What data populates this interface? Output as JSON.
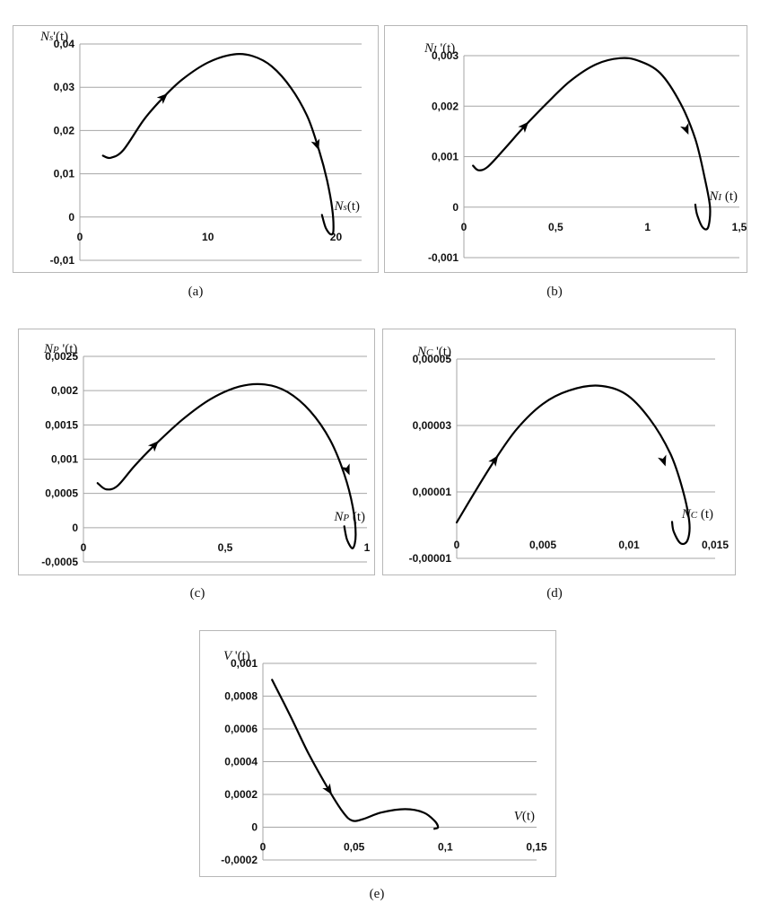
{
  "chart_data": [
    {
      "type": "line",
      "caption": "(a)",
      "xlabel": "Ns(t)",
      "ylabel": "Ns'(t)",
      "xlim": [
        0,
        22
      ],
      "ylim": [
        -0.01,
        0.04
      ],
      "xticks": [
        "0",
        "10",
        "20"
      ],
      "xtick_values": [
        0,
        10,
        20
      ],
      "yticks": [
        "0,04",
        "0,03",
        "0,02",
        "0,01",
        "0",
        "-0,01"
      ],
      "ytick_values": [
        0.04,
        0.03,
        0.02,
        0.01,
        0,
        -0.01
      ],
      "grid": true,
      "x": [
        1.8,
        2.4,
        3.4,
        5.0,
        6.5,
        8.0,
        10.0,
        12.0,
        13.5,
        15.0,
        16.5,
        17.8,
        18.7,
        19.3,
        19.7,
        19.8,
        19.6,
        19.2,
        18.9
      ],
      "y": [
        0.0142,
        0.0137,
        0.0155,
        0.0225,
        0.0276,
        0.0318,
        0.0357,
        0.0376,
        0.0372,
        0.0348,
        0.0298,
        0.023,
        0.0152,
        0.0085,
        0.002,
        -0.003,
        -0.004,
        -0.0025,
        0.0005
      ],
      "arrows": [
        {
          "x": 6.5,
          "y": 0.0276
        },
        {
          "x": 18.5,
          "y": 0.0168
        }
      ]
    },
    {
      "type": "line",
      "caption": "(b)",
      "xlabel": "NI (t)",
      "ylabel": "NI '(t)",
      "xlim": [
        0,
        1.5
      ],
      "ylim": [
        -0.001,
        0.003
      ],
      "xticks": [
        "0",
        "0,5",
        "1",
        "1,5"
      ],
      "xtick_values": [
        0,
        0.5,
        1,
        1.5
      ],
      "yticks": [
        "0,003",
        "0,002",
        "0,001",
        "0",
        "-0,001"
      ],
      "ytick_values": [
        0.003,
        0.002,
        0.001,
        0,
        -0.001
      ],
      "grid": true,
      "x": [
        0.05,
        0.08,
        0.13,
        0.22,
        0.33,
        0.45,
        0.58,
        0.72,
        0.85,
        0.95,
        1.07,
        1.18,
        1.26,
        1.31,
        1.34,
        1.33,
        1.3,
        1.27,
        1.26
      ],
      "y": [
        0.00082,
        0.00073,
        0.0008,
        0.00115,
        0.0016,
        0.00205,
        0.0025,
        0.00283,
        0.00295,
        0.0029,
        0.00265,
        0.00205,
        0.00135,
        0.0006,
        0.0,
        -0.0004,
        -0.0004,
        -0.00015,
        5e-05
      ],
      "arrows": [
        {
          "x": 0.33,
          "y": 0.0016
        },
        {
          "x": 1.21,
          "y": 0.00155
        }
      ]
    },
    {
      "type": "line",
      "caption": "(c)",
      "xlabel": "NP (t)",
      "ylabel": "NP '(t)",
      "xlim": [
        0,
        1
      ],
      "ylim": [
        -0.0005,
        0.0025
      ],
      "xticks": [
        "0",
        "0,5",
        "1"
      ],
      "xtick_values": [
        0,
        0.5,
        1
      ],
      "yticks": [
        "0,0025",
        "0,002",
        "0,0015",
        "0,001",
        "0,0005",
        "0",
        "-0,0005"
      ],
      "ytick_values": [
        0.0025,
        0.002,
        0.0015,
        0.001,
        0.0005,
        0,
        -0.0005
      ],
      "grid": true,
      "x": [
        0.05,
        0.08,
        0.12,
        0.18,
        0.25,
        0.35,
        0.45,
        0.55,
        0.64,
        0.72,
        0.8,
        0.87,
        0.92,
        0.95,
        0.96,
        0.95,
        0.93,
        0.92
      ],
      "y": [
        0.00065,
        0.00056,
        0.00061,
        0.0009,
        0.0012,
        0.00158,
        0.00188,
        0.00206,
        0.00209,
        0.00198,
        0.0017,
        0.00128,
        0.00078,
        0.0003,
        -0.0001,
        -0.0003,
        -0.00018,
        2e-05
      ],
      "arrows": [
        {
          "x": 0.25,
          "y": 0.0012
        },
        {
          "x": 0.93,
          "y": 0.00085
        }
      ]
    },
    {
      "type": "line",
      "caption": "(d)",
      "xlabel": "NC (t)",
      "ylabel": "NC '(t)",
      "xlim": [
        0,
        0.015
      ],
      "ylim": [
        -1e-05,
        5e-05
      ],
      "xticks": [
        "0",
        "0,005",
        "0,01",
        "0,015"
      ],
      "xtick_values": [
        0,
        0.005,
        0.01,
        0.015
      ],
      "yticks": [
        "0,00005",
        "0,00003",
        "0,00001",
        "-0,00001"
      ],
      "ytick_values": [
        5e-05,
        3e-05,
        1e-05,
        -1e-05
      ],
      "grid": true,
      "x": [
        0.0,
        0.001,
        0.0022,
        0.0035,
        0.005,
        0.0065,
        0.0082,
        0.0098,
        0.0112,
        0.0124,
        0.0131,
        0.0135,
        0.0134,
        0.013,
        0.0126,
        0.0125
      ],
      "y": [
        8e-07,
        9.5e-06,
        1.95e-05,
        2.9e-05,
        3.65e-05,
        4.05e-05,
        4.2e-05,
        3.95e-05,
        3.2e-05,
        2.15e-05,
        1.1e-05,
        1e-06,
        -4.5e-06,
        -5.5e-06,
        -2e-06,
        1e-06
      ],
      "arrows": [
        {
          "x": 0.0022,
          "y": 1.95e-05
        },
        {
          "x": 0.012,
          "y": 1.95e-05
        }
      ]
    },
    {
      "type": "line",
      "caption": "(e)",
      "xlabel": "V(t)",
      "ylabel": "V '(t)",
      "xlim": [
        0,
        0.15
      ],
      "ylim": [
        -0.0002,
        0.001
      ],
      "xticks": [
        "0",
        "0,05",
        "0,1",
        "0,15"
      ],
      "xtick_values": [
        0,
        0.05,
        0.1,
        0.15
      ],
      "yticks": [
        "0,001",
        "0,0008",
        "0,0006",
        "0,0004",
        "0,0002",
        "0",
        "-0,0002"
      ],
      "ytick_values": [
        0.001,
        0.0008,
        0.0006,
        0.0004,
        0.0002,
        0,
        -0.0002
      ],
      "grid": true,
      "x": [
        0.005,
        0.015,
        0.025,
        0.036,
        0.044,
        0.049,
        0.055,
        0.065,
        0.078,
        0.088,
        0.094,
        0.096,
        0.094
      ],
      "y": [
        0.0009,
        0.00068,
        0.00045,
        0.00023,
        9e-05,
        4e-05,
        5e-05,
        9e-05,
        0.00011,
        9e-05,
        4e-05,
        0.0,
        -1e-05
      ],
      "arrows": [
        {
          "x": 0.036,
          "y": 0.00023
        }
      ]
    }
  ]
}
